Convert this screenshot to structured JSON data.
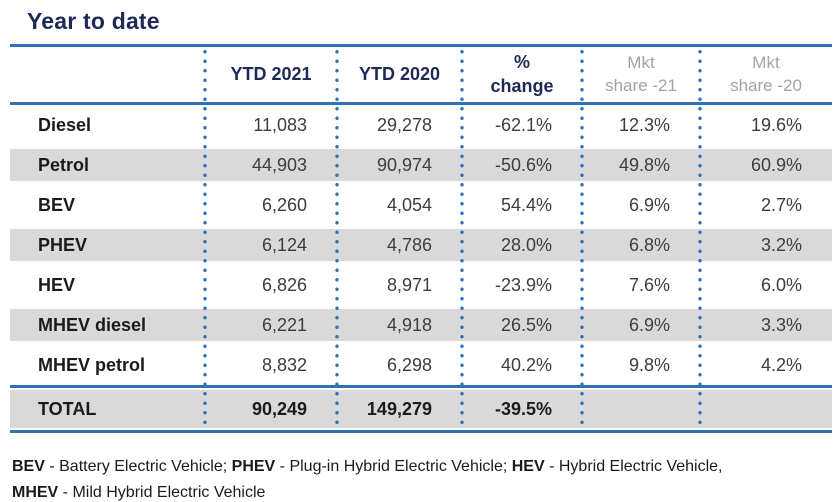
{
  "title": "Year to date",
  "colors": {
    "navy_text": "#1e2a55",
    "blue_lines": "#2e74b5",
    "band_gray": "#d9d9d9",
    "muted_header_gray": "#a3a3a3",
    "value_gray": "#3d3d3d"
  },
  "header": {
    "ytd2021": "YTD 2021",
    "ytd2020": "YTD 2020",
    "change_line1": "%",
    "change_line2": "change",
    "mkt21_line1": "Mkt",
    "mkt21_line2": "share -21",
    "mkt20_line1": "Mkt",
    "mkt20_line2": "share -20"
  },
  "chart_data": {
    "type": "table",
    "title": "Year to date",
    "columns": [
      "",
      "YTD 2021",
      "YTD 2020",
      "% change",
      "Mkt share -21",
      "Mkt share -20"
    ],
    "rows": [
      [
        "Diesel",
        "11,083",
        "29,278",
        "-62.1%",
        "12.3%",
        "19.6%"
      ],
      [
        "Petrol",
        "44,903",
        "90,974",
        "-50.6%",
        "49.8%",
        "60.9%"
      ],
      [
        "BEV",
        "6,260",
        "4,054",
        "54.4%",
        "6.9%",
        "2.7%"
      ],
      [
        "PHEV",
        "6,124",
        "4,786",
        "28.0%",
        "6.8%",
        "3.2%"
      ],
      [
        "HEV",
        "6,826",
        "8,971",
        "-23.9%",
        "7.6%",
        "6.0%"
      ],
      [
        "MHEV diesel",
        "6,221",
        "4,918",
        "26.5%",
        "6.9%",
        "3.3%"
      ],
      [
        "MHEV petrol",
        "8,832",
        "6,298",
        "40.2%",
        "9.8%",
        "4.2%"
      ],
      [
        "TOTAL",
        "90,249",
        "149,279",
        "-39.5%",
        "",
        ""
      ]
    ]
  },
  "footnote": {
    "term1": "BEV",
    "def1": " - Battery Electric Vehicle; ",
    "term2": "PHEV",
    "def2": " - Plug-in Hybrid Electric Vehicle; ",
    "term3": "HEV",
    "def3": " - Hybrid Electric Vehicle,",
    "term4": "MHEV",
    "def4": " - Mild Hybrid Electric Vehicle"
  }
}
